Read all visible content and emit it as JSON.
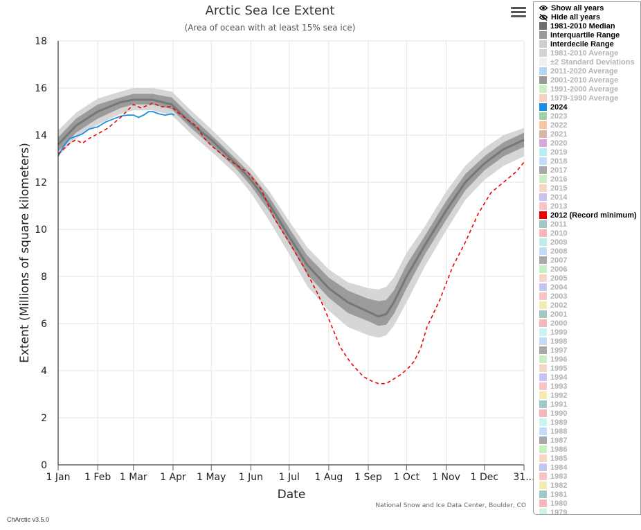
{
  "chart_data": {
    "type": "line",
    "title": "Arctic Sea Ice Extent",
    "subtitle": "(Area of ocean with at least 15% sea ice)",
    "xlabel": "Date",
    "ylabel": "Extent (Millions of square kilometers)",
    "ylim": [
      0,
      18
    ],
    "xlim_day": [
      1,
      366
    ],
    "x_tick_labels": [
      "1 Jan",
      "1 Feb",
      "1 Mar",
      "1 Apr",
      "1 May",
      "1 Jun",
      "1 Jul",
      "1 Aug",
      "1 Sep",
      "1 Oct",
      "1 Nov",
      "1 Dec",
      "31..."
    ],
    "y_tick_labels": [
      "0",
      "2",
      "4",
      "6",
      "8",
      "10",
      "12",
      "14",
      "16",
      "18"
    ],
    "grid": true,
    "credit": "National Snow and Ice Data Center, Boulder, CO",
    "x_unit": "day of year",
    "median": {
      "x": [
        1,
        15,
        32,
        50,
        60,
        75,
        90,
        105,
        121,
        140,
        152,
        166,
        182,
        196,
        213,
        228,
        244,
        252,
        258,
        264,
        274,
        288,
        305,
        320,
        335,
        350,
        366
      ],
      "y": [
        13.6,
        14.4,
        15.0,
        15.4,
        15.5,
        15.5,
        15.3,
        14.5,
        13.8,
        12.8,
        12.1,
        11.1,
        9.7,
        8.5,
        7.5,
        6.9,
        6.5,
        6.3,
        6.4,
        6.9,
        8.0,
        9.3,
        10.8,
        12.0,
        12.8,
        13.4,
        13.8
      ]
    },
    "interquartile_range": {
      "x": [
        1,
        15,
        32,
        50,
        60,
        75,
        90,
        105,
        121,
        140,
        152,
        166,
        182,
        196,
        213,
        228,
        244,
        252,
        258,
        264,
        274,
        288,
        305,
        320,
        335,
        350,
        366
      ],
      "upper": [
        13.9,
        14.7,
        15.3,
        15.6,
        15.75,
        15.75,
        15.6,
        14.8,
        14.0,
        13.0,
        12.35,
        11.4,
        10.05,
        8.9,
        7.95,
        7.4,
        7.05,
        6.95,
        7.0,
        7.4,
        8.5,
        9.7,
        11.2,
        12.35,
        13.1,
        13.7,
        14.1
      ],
      "lower": [
        13.3,
        14.1,
        14.7,
        15.15,
        15.3,
        15.3,
        15.1,
        14.3,
        13.55,
        12.6,
        11.85,
        10.8,
        9.4,
        8.1,
        7.1,
        6.45,
        6.1,
        5.9,
        5.95,
        6.4,
        7.5,
        8.9,
        10.4,
        11.65,
        12.5,
        13.1,
        13.5
      ]
    },
    "interdecile_range": {
      "x": [
        1,
        15,
        32,
        50,
        60,
        75,
        90,
        105,
        121,
        140,
        152,
        166,
        182,
        196,
        213,
        228,
        244,
        252,
        258,
        264,
        274,
        288,
        305,
        320,
        335,
        350,
        366
      ],
      "upper": [
        14.2,
        14.95,
        15.55,
        15.85,
        16.0,
        16.0,
        15.85,
        15.05,
        14.25,
        13.25,
        12.6,
        11.65,
        10.35,
        9.25,
        8.3,
        7.75,
        7.5,
        7.45,
        7.55,
        7.95,
        9.0,
        10.1,
        11.6,
        12.7,
        13.45,
        14.0,
        14.3
      ],
      "lower": [
        13.1,
        13.85,
        14.45,
        14.9,
        15.05,
        15.05,
        14.85,
        14.05,
        13.3,
        12.35,
        11.55,
        10.4,
        8.95,
        7.6,
        6.55,
        5.85,
        5.5,
        5.4,
        5.5,
        5.9,
        6.9,
        8.4,
        9.95,
        11.25,
        12.1,
        12.7,
        13.1
      ]
    },
    "series": [
      {
        "name": "2024",
        "color": "#1a8fe3",
        "x": [
          1,
          5,
          10,
          15,
          20,
          25,
          32,
          38,
          45,
          50,
          55,
          60,
          64,
          68,
          72,
          75,
          80,
          85,
          90,
          92
        ],
        "y": [
          13.1,
          13.5,
          13.85,
          13.95,
          14.05,
          14.25,
          14.35,
          14.55,
          14.7,
          14.8,
          14.85,
          14.85,
          14.75,
          14.85,
          15.0,
          15.0,
          14.9,
          14.85,
          14.9,
          14.85
        ]
      },
      {
        "name": "2012 (Record minimum)",
        "color": "#ee0000",
        "dashed": true,
        "x": [
          1,
          5,
          10,
          15,
          20,
          25,
          32,
          40,
          50,
          60,
          66,
          75,
          82,
          90,
          95,
          100,
          110,
          115,
          121,
          130,
          140,
          150,
          160,
          170,
          182,
          195,
          205,
          213,
          222,
          230,
          240,
          247,
          252,
          258,
          264,
          270,
          276,
          280,
          285,
          290,
          300,
          310,
          320,
          330,
          340,
          350,
          360,
          366
        ],
        "y": [
          13.2,
          13.4,
          13.65,
          13.8,
          13.65,
          13.85,
          14.05,
          14.3,
          14.75,
          15.3,
          15.15,
          15.35,
          15.2,
          15.2,
          14.95,
          14.75,
          14.35,
          13.9,
          13.55,
          13.15,
          12.75,
          12.4,
          11.7,
          10.5,
          9.45,
          8.25,
          7.2,
          6.2,
          5.0,
          4.35,
          3.75,
          3.55,
          3.45,
          3.45,
          3.65,
          3.85,
          4.15,
          4.4,
          4.95,
          5.85,
          7.0,
          8.4,
          9.45,
          10.65,
          11.55,
          12.0,
          12.45,
          12.85
        ]
      }
    ]
  },
  "menu": {
    "icon": "hamburger-menu-icon"
  },
  "legend": {
    "show_all": "Show all years",
    "hide_all": "Hide all years",
    "show_all_icon": "eye-icon",
    "hide_all_icon": "eye-slash-icon",
    "items": [
      {
        "label": "1981-2010 Median",
        "color": "#6f6f6f",
        "active": true
      },
      {
        "label": "Interquartile Range",
        "color": "#999999",
        "active": true
      },
      {
        "label": "Interdecile Range",
        "color": "#cfcfcf",
        "active": true
      },
      {
        "label": "1981-2010 Average",
        "color": "#d5d5d5",
        "active": false
      },
      {
        "label": "±2 Standard Deviations",
        "color": "#efefef",
        "active": false
      },
      {
        "label": "2011-2020 Average",
        "color": "#b9d5f2",
        "active": false
      },
      {
        "label": "2001-2010 Average",
        "color": "#9a9a9a",
        "active": false
      },
      {
        "label": "1991-2000 Average",
        "color": "#c8f0c0",
        "active": false
      },
      {
        "label": "1979-1990 Average",
        "color": "#f8d3c2",
        "active": false
      },
      {
        "label": "2024",
        "color": "#1a8fe3",
        "active": true
      },
      {
        "label": "2023",
        "color": "#9fd3a7",
        "active": false
      },
      {
        "label": "2022",
        "color": "#f7c7a2",
        "active": false
      },
      {
        "label": "2021",
        "color": "#d9b6a8",
        "active": false
      },
      {
        "label": "2020",
        "color": "#d9a7df",
        "active": false
      },
      {
        "label": "2019",
        "color": "#b8f0f0",
        "active": false
      },
      {
        "label": "2018",
        "color": "#c4dcf5",
        "active": false
      },
      {
        "label": "2017",
        "color": "#a9a9a9",
        "active": false
      },
      {
        "label": "2016",
        "color": "#c9efc0",
        "active": false
      },
      {
        "label": "2015",
        "color": "#f6d6c6",
        "active": false
      },
      {
        "label": "2014",
        "color": "#c6c6f0",
        "active": false
      },
      {
        "label": "2013",
        "color": "#f6c4c9",
        "active": false
      },
      {
        "label": "2012 (Record minimum)",
        "color": "#ee0000",
        "active": true
      },
      {
        "label": "2011",
        "color": "#9fc8c6",
        "active": false
      },
      {
        "label": "2010",
        "color": "#f6b8bc",
        "active": false
      },
      {
        "label": "2009",
        "color": "#b8f0f0",
        "active": false
      },
      {
        "label": "2008",
        "color": "#c4dcf5",
        "active": false
      },
      {
        "label": "2007",
        "color": "#a9a9a9",
        "active": false
      },
      {
        "label": "2006",
        "color": "#c9efc0",
        "active": false
      },
      {
        "label": "2005",
        "color": "#f6d6c6",
        "active": false
      },
      {
        "label": "2004",
        "color": "#c6c6f0",
        "active": false
      },
      {
        "label": "2003",
        "color": "#f6c4c9",
        "active": false
      },
      {
        "label": "2002",
        "color": "#f2ecb0",
        "active": false
      },
      {
        "label": "2001",
        "color": "#9fc8c6",
        "active": false
      },
      {
        "label": "2000",
        "color": "#f6b8bc",
        "active": false
      },
      {
        "label": "1999",
        "color": "#c8f4f4",
        "active": false
      },
      {
        "label": "1998",
        "color": "#c4dcf5",
        "active": false
      },
      {
        "label": "1997",
        "color": "#a9a9a9",
        "active": false
      },
      {
        "label": "1996",
        "color": "#c9efc0",
        "active": false
      },
      {
        "label": "1995",
        "color": "#f6d6c6",
        "active": false
      },
      {
        "label": "1994",
        "color": "#c6c6f0",
        "active": false
      },
      {
        "label": "1993",
        "color": "#f6c4c9",
        "active": false
      },
      {
        "label": "1992",
        "color": "#f2ecb0",
        "active": false
      },
      {
        "label": "1991",
        "color": "#9fc8c6",
        "active": false
      },
      {
        "label": "1990",
        "color": "#f6b8bc",
        "active": false
      },
      {
        "label": "1989",
        "color": "#c8f4f4",
        "active": false
      },
      {
        "label": "1988",
        "color": "#c4dcf5",
        "active": false
      },
      {
        "label": "1987",
        "color": "#a9a9a9",
        "active": false
      },
      {
        "label": "1986",
        "color": "#c9efc0",
        "active": false
      },
      {
        "label": "1985",
        "color": "#f6d6c6",
        "active": false
      },
      {
        "label": "1984",
        "color": "#c6c6f0",
        "active": false
      },
      {
        "label": "1983",
        "color": "#f6c4c9",
        "active": false
      },
      {
        "label": "1982",
        "color": "#f2ecb0",
        "active": false
      },
      {
        "label": "1981",
        "color": "#9fc8c6",
        "active": false
      },
      {
        "label": "1980",
        "color": "#f6b8bc",
        "active": false
      },
      {
        "label": "1979",
        "color": "#c8f4f4",
        "active": false
      }
    ]
  },
  "footer": {
    "version": "ChArctic v3.5.0"
  }
}
